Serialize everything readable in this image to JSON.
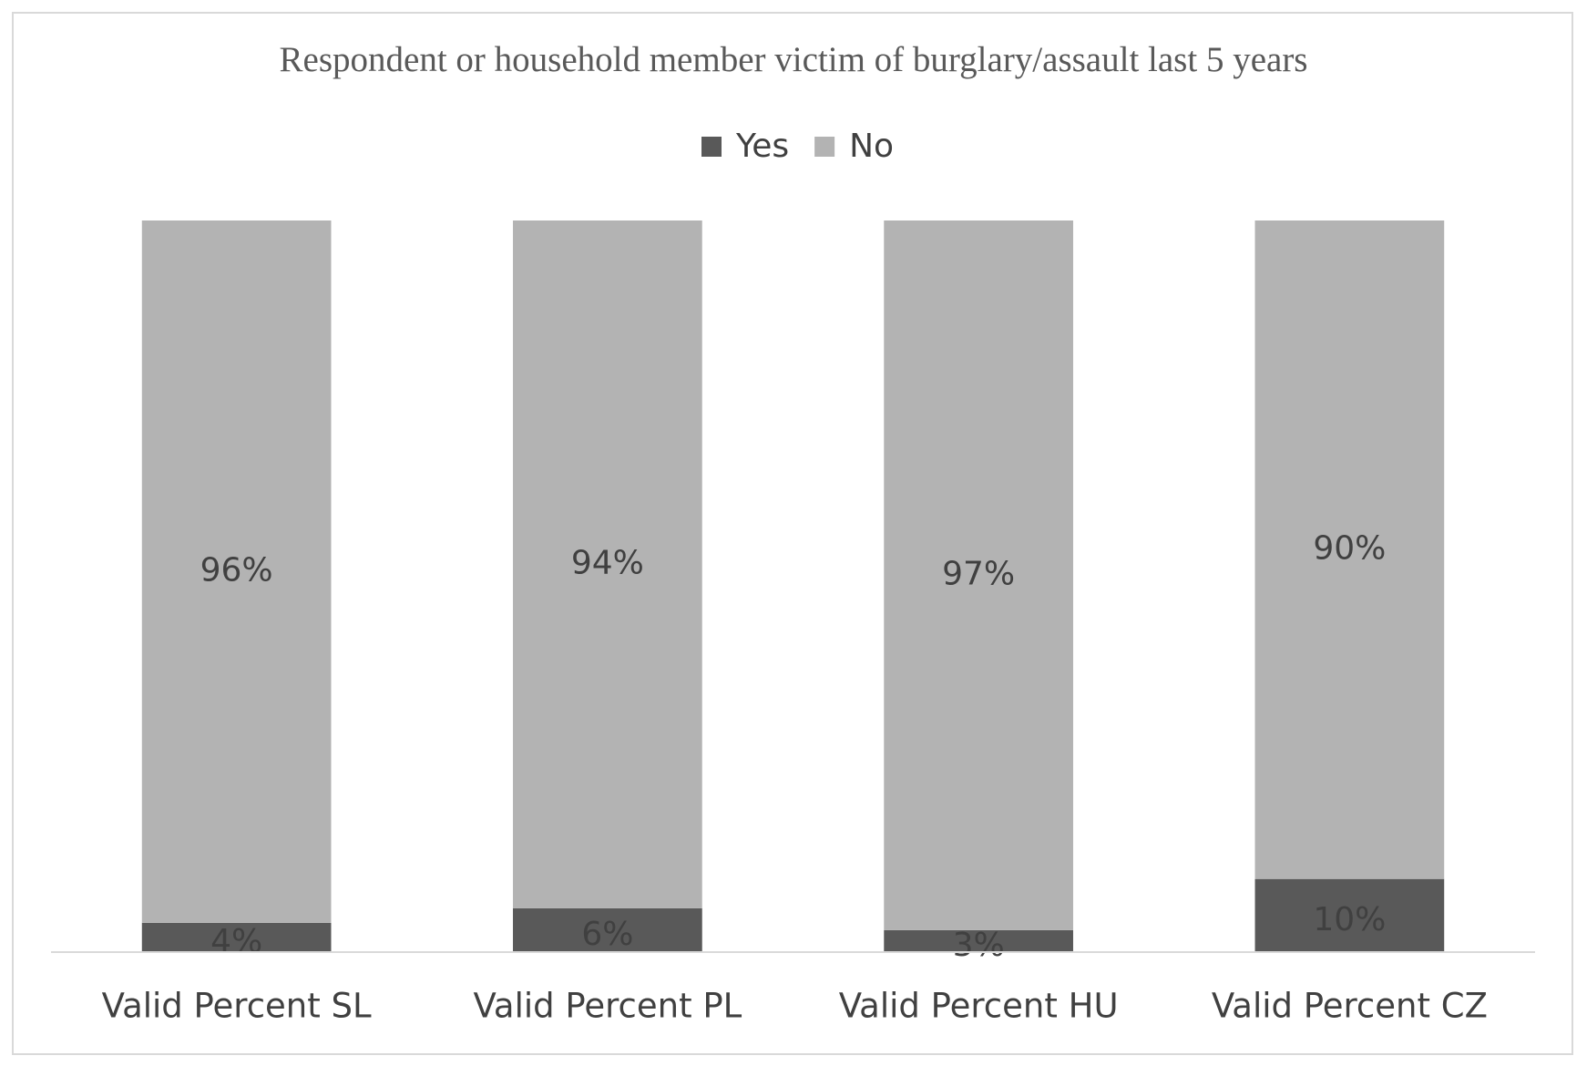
{
  "chart_data": {
    "type": "stacked_bar",
    "title": "Respondent or household member victim of burglary/assault last 5 years",
    "categories": [
      "Valid Percent SL",
      "Valid Percent PL",
      "Valid Percent HU",
      "Valid Percent CZ"
    ],
    "series": [
      {
        "name": "Yes",
        "color": "#595959",
        "values": [
          4,
          6,
          3,
          10
        ],
        "value_labels": [
          "4%",
          "6%",
          "3%",
          "10%"
        ]
      },
      {
        "name": "No",
        "color": "#b3b3b3",
        "values": [
          96,
          94,
          97,
          90
        ],
        "value_labels": [
          "96%",
          "94%",
          "97%",
          "90%"
        ]
      }
    ],
    "ylim": [
      0,
      100
    ],
    "legend": "top"
  }
}
